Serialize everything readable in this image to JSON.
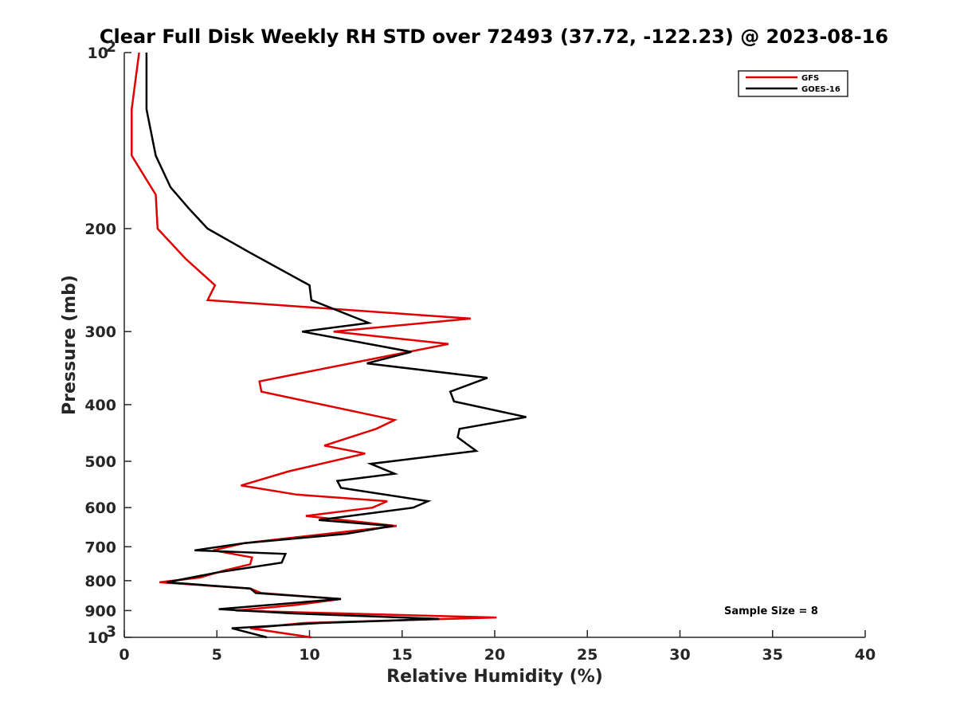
{
  "chart_data": {
    "type": "line",
    "title": "Clear Full Disk Weekly RH STD over 72493 (37.72, -122.23) @ 2023-08-16",
    "xlabel": "Relative Humidity (%)",
    "ylabel": "Pressure (mb)",
    "xlim": [
      0,
      40
    ],
    "ylim": [
      100,
      1000
    ],
    "y_scale": "log",
    "y_reversed": true,
    "x_ticks": [
      "0",
      "5",
      "10",
      "15",
      "20",
      "25",
      "30",
      "35",
      "40"
    ],
    "y_ticks": [
      {
        "value": 100,
        "label": "10",
        "sup": "2"
      },
      {
        "value": 200,
        "label": "200"
      },
      {
        "value": 300,
        "label": "300"
      },
      {
        "value": 400,
        "label": "400"
      },
      {
        "value": 500,
        "label": "500"
      },
      {
        "value": 600,
        "label": "600"
      },
      {
        "value": 700,
        "label": "700"
      },
      {
        "value": 800,
        "label": "800"
      },
      {
        "value": 900,
        "label": "900"
      },
      {
        "value": 1000,
        "label": "10",
        "sup": "3"
      }
    ],
    "grid": false,
    "legend_position": "top-right",
    "annotation": "Sample Size = 8",
    "series": [
      {
        "name": "GFS",
        "color": "#e00000",
        "points": [
          [
            0.8,
            100
          ],
          [
            0.4,
            125
          ],
          [
            0.4,
            150
          ],
          [
            1.7,
            175
          ],
          [
            1.8,
            200
          ],
          [
            3.3,
            225
          ],
          [
            4.9,
            250
          ],
          [
            4.5,
            265
          ],
          [
            18.7,
            285
          ],
          [
            11.3,
            300
          ],
          [
            17.5,
            315
          ],
          [
            7.3,
            365
          ],
          [
            7.4,
            380
          ],
          [
            14.6,
            425
          ],
          [
            13.6,
            440
          ],
          [
            10.8,
            470
          ],
          [
            13.0,
            485
          ],
          [
            8.9,
            520
          ],
          [
            6.3,
            550
          ],
          [
            9.3,
            570
          ],
          [
            14.2,
            585
          ],
          [
            13.4,
            600
          ],
          [
            9.8,
            620
          ],
          [
            14.7,
            645
          ],
          [
            6.5,
            690
          ],
          [
            4.8,
            710
          ],
          [
            6.9,
            730
          ],
          [
            6.8,
            750
          ],
          [
            5.3,
            770
          ],
          [
            4.1,
            790
          ],
          [
            1.9,
            805
          ],
          [
            6.8,
            825
          ],
          [
            7.4,
            840
          ],
          [
            11.7,
            860
          ],
          [
            9.3,
            880
          ],
          [
            6.0,
            900
          ],
          [
            11.6,
            910
          ],
          [
            20.1,
            925
          ],
          [
            9.7,
            945
          ],
          [
            6.8,
            965
          ],
          [
            10.1,
            1000
          ]
        ]
      },
      {
        "name": "GOES-16",
        "color": "#000000",
        "points": [
          [
            1.2,
            100
          ],
          [
            1.2,
            125
          ],
          [
            1.7,
            150
          ],
          [
            2.5,
            170
          ],
          [
            3.5,
            185
          ],
          [
            4.5,
            200
          ],
          [
            6.8,
            220
          ],
          [
            10.0,
            250
          ],
          [
            10.1,
            265
          ],
          [
            13.2,
            290
          ],
          [
            9.6,
            300
          ],
          [
            15.5,
            325
          ],
          [
            13.1,
            340
          ],
          [
            19.6,
            360
          ],
          [
            17.6,
            380
          ],
          [
            17.8,
            395
          ],
          [
            21.7,
            420
          ],
          [
            18.1,
            440
          ],
          [
            18.0,
            455
          ],
          [
            19.0,
            480
          ],
          [
            13.3,
            505
          ],
          [
            14.6,
            525
          ],
          [
            11.5,
            540
          ],
          [
            11.7,
            555
          ],
          [
            16.4,
            585
          ],
          [
            15.6,
            600
          ],
          [
            10.5,
            630
          ],
          [
            14.5,
            645
          ],
          [
            12.0,
            665
          ],
          [
            6.5,
            690
          ],
          [
            3.8,
            710
          ],
          [
            8.7,
            720
          ],
          [
            8.5,
            745
          ],
          [
            5.0,
            775
          ],
          [
            2.3,
            805
          ],
          [
            6.8,
            825
          ],
          [
            7.1,
            840
          ],
          [
            11.7,
            860
          ],
          [
            5.1,
            895
          ],
          [
            9.0,
            910
          ],
          [
            17.0,
            930
          ],
          [
            10.6,
            945
          ],
          [
            5.8,
            965
          ],
          [
            7.7,
            1000
          ]
        ]
      }
    ]
  }
}
